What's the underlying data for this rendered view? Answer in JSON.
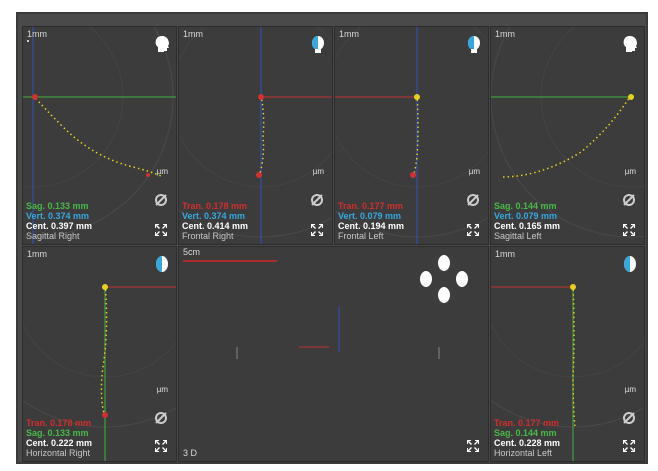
{
  "panels": [
    {
      "title": "Sagittal Right",
      "scale": "1mm",
      "unit": "µm",
      "head": "head-side-icon",
      "stats": [
        {
          "text": "Sag. 0.133 mm",
          "color": "green"
        },
        {
          "text": "Vert. 0.374 mm",
          "color": "cyan"
        },
        {
          "text": "Cent. 0.397 mm",
          "color": "white"
        }
      ]
    },
    {
      "title": "Frontal Right",
      "scale": "1mm",
      "unit": "µm",
      "head": "head-front-half-icon",
      "stats": [
        {
          "text": "Tran. 0.178 mm",
          "color": "red"
        },
        {
          "text": "Vert. 0.374 mm",
          "color": "cyan"
        },
        {
          "text": "Cent. 0.414 mm",
          "color": "white"
        }
      ]
    },
    {
      "title": "Frontal Left",
      "scale": "1mm",
      "unit": "µm",
      "head": "head-front-half-icon",
      "stats": [
        {
          "text": "Tran. 0.177 mm",
          "color": "red"
        },
        {
          "text": "Vert. 0.079 mm",
          "color": "cyan"
        },
        {
          "text": "Cent. 0.194 mm",
          "color": "white"
        }
      ]
    },
    {
      "title": "Sagittal Left",
      "scale": "1mm",
      "unit": "µm",
      "head": "head-side-icon",
      "stats": [
        {
          "text": "Sag. 0.144 mm",
          "color": "green"
        },
        {
          "text": "Vert. 0.079 mm",
          "color": "cyan"
        },
        {
          "text": "Cent. 0.165 mm",
          "color": "white"
        }
      ]
    },
    {
      "title": "Horizontal Right",
      "scale": "1mm",
      "unit": "µm",
      "head": "head-top-half-icon",
      "stats": [
        {
          "text": "Tran. 0.178 mm",
          "color": "red"
        },
        {
          "text": "Sag. 0.133 mm",
          "color": "green"
        },
        {
          "text": "Cent. 0.222 mm",
          "color": "white"
        }
      ]
    },
    {
      "title": "Horizontal Left",
      "scale": "1mm",
      "unit": "µm",
      "head": "head-top-half-icon",
      "stats": [
        {
          "text": "Tran. 0.177 mm",
          "color": "red"
        },
        {
          "text": "Sag. 0.144 mm",
          "color": "green"
        },
        {
          "text": "Cent. 0.228 mm",
          "color": "white"
        }
      ]
    }
  ],
  "view3d": {
    "title": "3 D",
    "scale": "5cm"
  },
  "icons": {
    "expand": "expand-icon",
    "reset": "reset-null-icon"
  },
  "colors": {
    "background": "#3c3c3c",
    "frame": "#4a4a4a",
    "red": "#d22d2d",
    "green": "#48b848",
    "cyan": "#36a8e0",
    "trace": "#e8d020"
  }
}
